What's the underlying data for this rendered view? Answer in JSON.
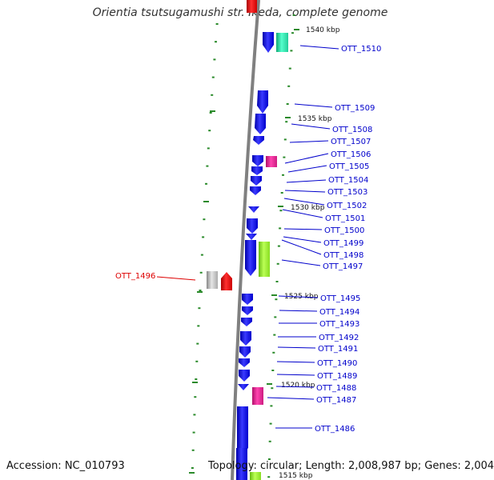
{
  "header": {
    "title": "Orientia tsutsugamushi str. Ikeda, complete genome"
  },
  "footer": {
    "accession": "Accession: NC_010793",
    "summary": "Topology: circular; Length: 2,008,987 bp; Genes: 2,004"
  },
  "scale_labels": [
    {
      "kbp": 1540,
      "text": "1540 kbp"
    },
    {
      "kbp": 1535,
      "text": "1535 kbp"
    },
    {
      "kbp": 1530,
      "text": "1530 kbp"
    },
    {
      "kbp": 1525,
      "text": "1525 kbp"
    },
    {
      "kbp": 1520,
      "text": "1520 kbp"
    },
    {
      "kbp": 1515,
      "text": "1515 kbp"
    }
  ],
  "gene_labels": [
    {
      "text": "OTT_1510",
      "color": "#0000cc"
    },
    {
      "text": "OTT_1509",
      "color": "#0000cc"
    },
    {
      "text": "OTT_1508",
      "color": "#0000cc"
    },
    {
      "text": "OTT_1507",
      "color": "#0000cc"
    },
    {
      "text": "OTT_1506",
      "color": "#0000cc"
    },
    {
      "text": "OTT_1505",
      "color": "#0000cc"
    },
    {
      "text": "OTT_1504",
      "color": "#0000cc"
    },
    {
      "text": "OTT_1503",
      "color": "#0000cc"
    },
    {
      "text": "OTT_1502",
      "color": "#0000cc"
    },
    {
      "text": "OTT_1501",
      "color": "#0000cc"
    },
    {
      "text": "OTT_1500",
      "color": "#0000cc"
    },
    {
      "text": "OTT_1499",
      "color": "#0000cc"
    },
    {
      "text": "OTT_1498",
      "color": "#0000cc"
    },
    {
      "text": "OTT_1497",
      "color": "#0000cc"
    },
    {
      "text": "OTT_1496",
      "color": "#dd0000"
    },
    {
      "text": "OTT_1495",
      "color": "#0000cc"
    },
    {
      "text": "OTT_1494",
      "color": "#0000cc"
    },
    {
      "text": "OTT_1493",
      "color": "#0000cc"
    },
    {
      "text": "OTT_1492",
      "color": "#0000cc"
    },
    {
      "text": "OTT_1491",
      "color": "#0000cc"
    },
    {
      "text": "OTT_1490",
      "color": "#0000cc"
    },
    {
      "text": "OTT_1489",
      "color": "#0000cc"
    },
    {
      "text": "OTT_1488",
      "color": "#0000cc"
    },
    {
      "text": "OTT_1487",
      "color": "#0000cc"
    },
    {
      "text": "OTT_1486",
      "color": "#0000cc"
    }
  ],
  "colors": {
    "backbone": "#808080",
    "cds_forward": "#1a1aee",
    "cds_highlight": "#ee1111",
    "trna": "#ee2299",
    "rrna_green": "#99ee33",
    "teal": "#22ddaa",
    "pseudo_gray": "#b8b8b8",
    "tick": "#2a8a2a",
    "label_blue": "#0000cc",
    "label_red": "#dd0000"
  }
}
